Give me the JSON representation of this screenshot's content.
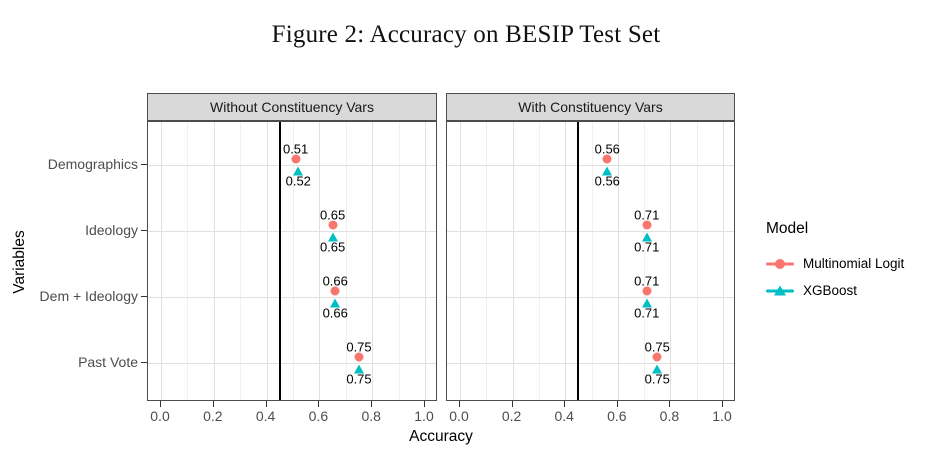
{
  "figure_title": "Figure 2: Accuracy on BESIP Test Set",
  "chart_data": {
    "type": "scatter",
    "title": "Figure 2: Accuracy on BESIP Test Set",
    "xlabel": "Accuracy",
    "ylabel": "Variables",
    "categories": [
      "Demographics",
      "Ideology",
      "Dem + Ideology",
      "Past Vote"
    ],
    "x_tick_labels": [
      "0.0",
      "0.2",
      "0.4",
      "0.6",
      "0.8",
      "1.0"
    ],
    "xlim": [
      0,
      1
    ],
    "grid": true,
    "reference_line_x": 0.45,
    "legend_position": "right",
    "legend_title": "Model",
    "facets": [
      {
        "label": "Without Constituency Vars",
        "series": [
          {
            "name": "Multinomial Logit",
            "marker": "circle",
            "color": "#F8766D",
            "values": [
              0.51,
              0.65,
              0.66,
              0.75
            ]
          },
          {
            "name": "XGBoost",
            "marker": "triangle",
            "color": "#00BFC4",
            "values": [
              0.52,
              0.65,
              0.66,
              0.75
            ]
          }
        ]
      },
      {
        "label": "With Constituency Vars",
        "series": [
          {
            "name": "Multinomial Logit",
            "marker": "circle",
            "color": "#F8766D",
            "values": [
              0.56,
              0.71,
              0.71,
              0.75
            ]
          },
          {
            "name": "XGBoost",
            "marker": "triangle",
            "color": "#00BFC4",
            "values": [
              0.56,
              0.71,
              0.71,
              0.75
            ]
          }
        ]
      }
    ]
  },
  "colors": {
    "multinomial_logit": "#F8766D",
    "xgboost": "#00BFC4",
    "strip_bg": "#D9D9D9",
    "panel_border": "#4D4D4D",
    "grid_major": "#E0E0E0",
    "grid_minor": "#F0F0F0",
    "axis_text": "#4D4D4D",
    "reference_line": "#000000"
  }
}
